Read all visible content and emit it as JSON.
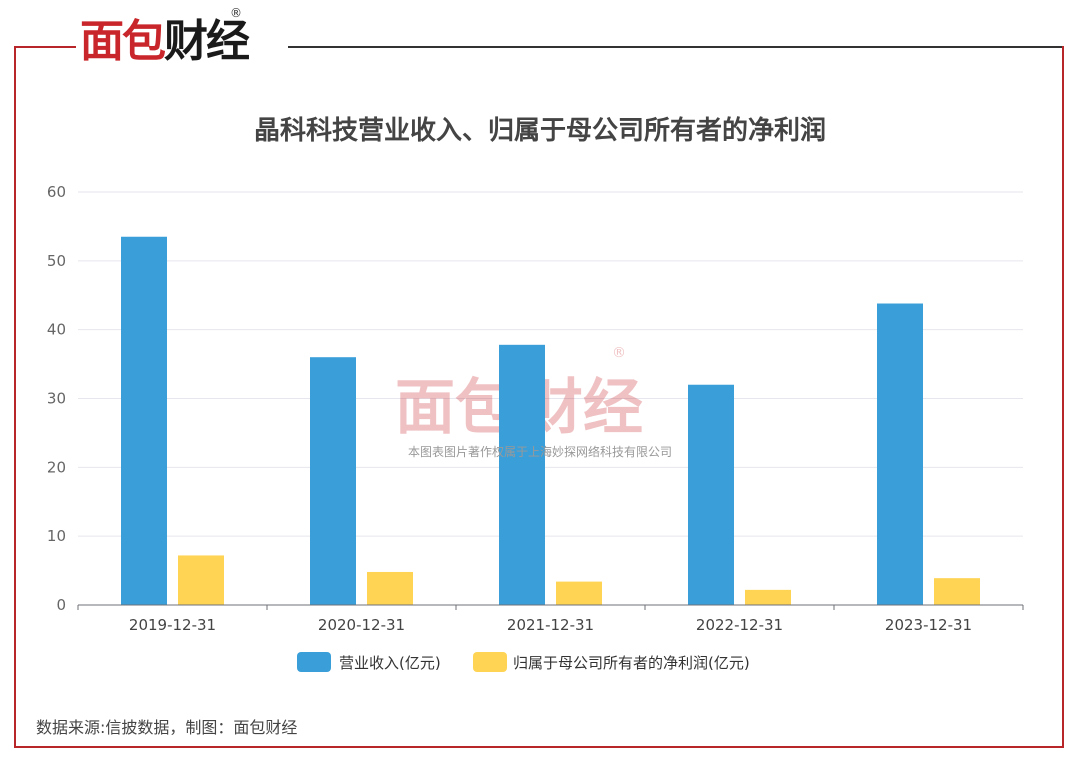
{
  "brand": {
    "logo_part1": "面包",
    "logo_part2": "财经",
    "registered": "®"
  },
  "title": "晶科科技营业收入、归属于母公司所有者的净利润",
  "watermark": {
    "logo_part1": "面包",
    "logo_part2": "财经",
    "registered": "®",
    "copyright": "本图表图片著作权属于上海妙探网络科技有限公司"
  },
  "source": "数据来源:信披数据，制图：面包财经",
  "colors": {
    "revenue": "#3a9fd9",
    "net_profit": "#ffd454",
    "brand_red": "#c8262b",
    "grid": "#e6e6ee",
    "axis": "#6e7079"
  },
  "chart_data": {
    "type": "bar",
    "title": "晶科科技营业收入、归属于母公司所有者的净利润",
    "categories": [
      "2019-12-31",
      "2020-12-31",
      "2021-12-31",
      "2022-12-31",
      "2023-12-31"
    ],
    "series": [
      {
        "name": "营业收入(亿元)",
        "values": [
          53.5,
          36.0,
          37.8,
          32.0,
          43.8
        ]
      },
      {
        "name": "归属于母公司所有者的净利润(亿元)",
        "values": [
          7.2,
          4.8,
          3.4,
          2.2,
          3.9
        ]
      }
    ],
    "ylim": [
      0,
      60
    ],
    "yticks": [
      0,
      10,
      20,
      30,
      40,
      50,
      60
    ],
    "xlabel": "",
    "ylabel": "",
    "grid": true,
    "legend": "bottom-center"
  }
}
